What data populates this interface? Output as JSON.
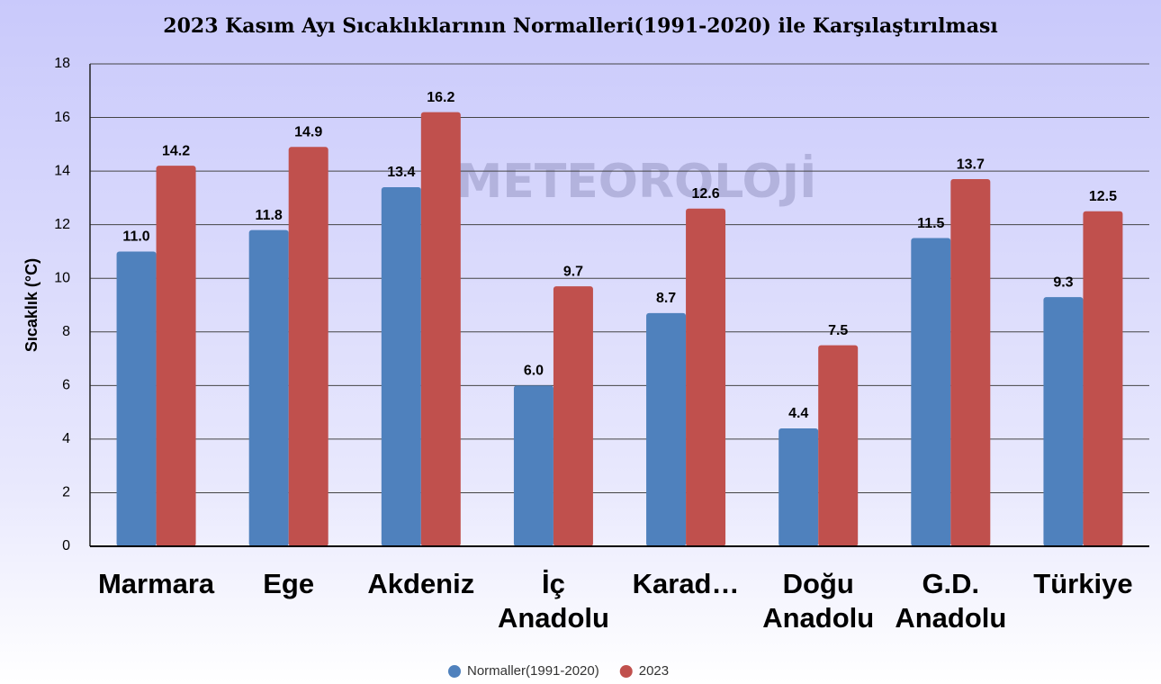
{
  "chart_data": {
    "type": "bar",
    "title": "2023 Kasım Ayı Sıcaklıklarının Normalleri(1991-2020) ile Karşılaştırılması",
    "y_label": "Sıcaklık (°C)",
    "watermark": "METEOROLOJİ",
    "categories": [
      "Marmara",
      "Ege",
      "Akdeniz",
      "İç Anadolu",
      "Karad…",
      "Doğu Anadolu",
      "G.D. Anadolu",
      "Türkiye"
    ],
    "series": [
      {
        "name": "Normaller(1991-2020)",
        "color": "#4f81bd",
        "values": [
          11.0,
          11.8,
          13.4,
          6.0,
          8.7,
          4.4,
          11.5,
          9.3
        ],
        "value_labels": [
          "11.0",
          "11.8",
          "13.4",
          "6.0",
          "8.7",
          "4.4",
          "11.5",
          "9.3"
        ]
      },
      {
        "name": "2023",
        "color": "#c0504d",
        "values": [
          14.2,
          14.9,
          16.2,
          9.7,
          12.6,
          7.5,
          13.7,
          12.5
        ],
        "value_labels": [
          "14.2",
          "14.9",
          "16.2",
          "9.7",
          "12.6",
          "7.5",
          "13.7",
          "12.5"
        ]
      }
    ],
    "ylim": [
      0,
      18
    ],
    "yticks": [
      0,
      2,
      4,
      6,
      8,
      10,
      12,
      14,
      16,
      18
    ],
    "grid": true,
    "legend": "bottom"
  }
}
